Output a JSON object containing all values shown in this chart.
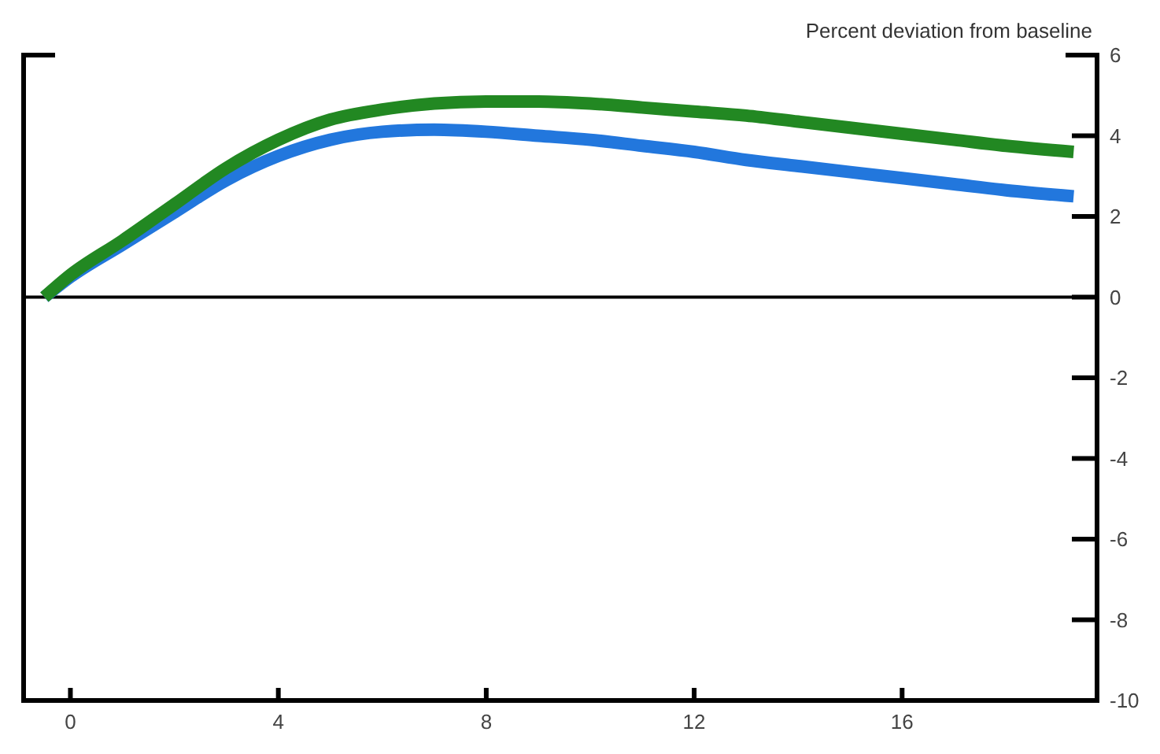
{
  "chart_data": {
    "type": "line",
    "ylabel": "Percent deviation from baseline",
    "xlim": [
      -0.9,
      19.75
    ],
    "xticks": [
      0,
      4,
      8,
      12,
      16
    ],
    "ylim": [
      -10,
      6
    ],
    "yticks": [
      -10,
      -8,
      -6,
      -4,
      -2,
      0,
      2,
      4,
      6
    ],
    "x": [
      -0.5,
      0,
      1,
      2,
      3,
      4,
      5,
      6,
      7,
      8,
      9,
      10,
      11,
      12,
      13,
      14,
      15,
      16,
      17,
      18,
      19.3
    ],
    "series": [
      {
        "color": "#2277dd",
        "values": [
          0,
          0.5,
          1.3,
          2.1,
          2.9,
          3.5,
          3.9,
          4.1,
          4.15,
          4.1,
          4.0,
          3.9,
          3.75,
          3.6,
          3.4,
          3.25,
          3.1,
          2.95,
          2.8,
          2.65,
          2.5
        ]
      },
      {
        "color": "#228822",
        "values": [
          0,
          0.55,
          1.4,
          2.3,
          3.2,
          3.9,
          4.4,
          4.65,
          4.8,
          4.85,
          4.85,
          4.8,
          4.7,
          4.6,
          4.5,
          4.35,
          4.2,
          4.05,
          3.9,
          3.75,
          3.6
        ]
      }
    ],
    "ref_lines": [
      {
        "axis": "y",
        "value": 0,
        "color": "#000000"
      }
    ],
    "grid": false,
    "marker": "none",
    "line_style": "solid"
  }
}
